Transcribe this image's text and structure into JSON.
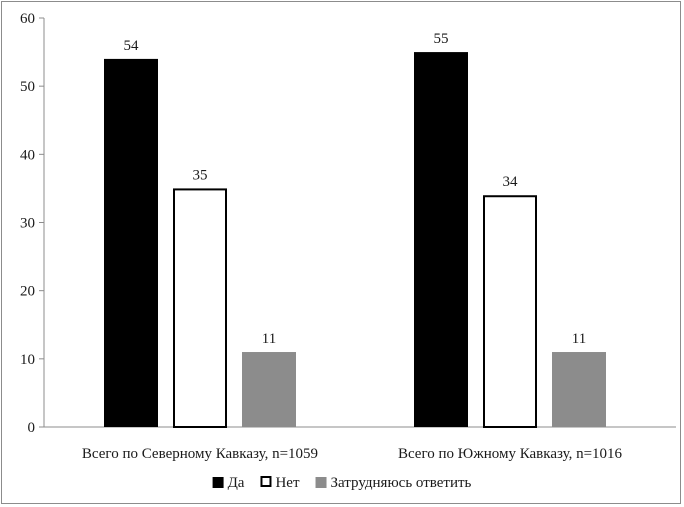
{
  "chart_data": {
    "type": "bar",
    "categories": [
      "Всего по Северному Кавказу, n=1059",
      "Всего по Южному Кавказу, n=1016"
    ],
    "series": [
      {
        "name": "Да",
        "values": [
          54,
          55
        ],
        "color": "#000000"
      },
      {
        "name": "Нет",
        "values": [
          35,
          34
        ],
        "color": "#ffffff"
      },
      {
        "name": "Затрудняюсь ответить",
        "values": [
          11,
          11
        ],
        "color": "#8c8c8c"
      }
    ],
    "ylim": [
      0,
      60
    ],
    "yticks": [
      0,
      10,
      20,
      30,
      40,
      50,
      60
    ],
    "legend_position": "bottom",
    "grid": false,
    "data_labels": true
  }
}
